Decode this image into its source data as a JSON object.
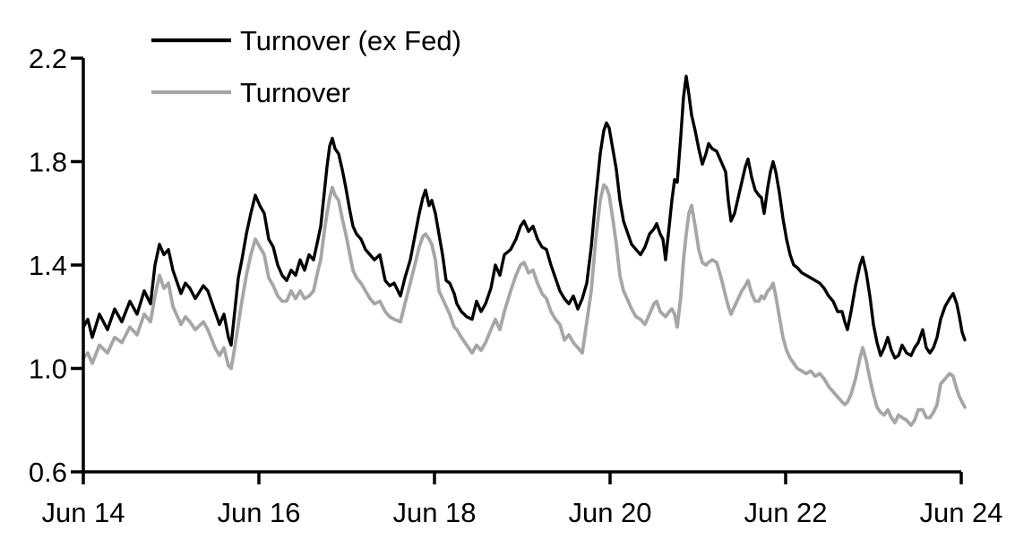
{
  "page": {
    "background": "#ffffff"
  },
  "chart_data": {
    "type": "line",
    "title": "",
    "grid": false,
    "x_axis": {
      "range": [
        0,
        10
      ],
      "tick_positions": [
        0,
        2,
        4,
        6,
        8,
        10
      ],
      "tick_labels": [
        "Jun 14",
        "Jun 16",
        "Jun 18",
        "Jun 20",
        "Jun 22",
        "Jun 24"
      ]
    },
    "y_axis": {
      "range": [
        0.6,
        2.2
      ],
      "tick_values": [
        0.6,
        1.0,
        1.4,
        1.8,
        2.2
      ],
      "tick_labels": [
        "0.6",
        "1.0",
        "1.4",
        "1.8",
        "2.2"
      ]
    },
    "legend": {
      "position": "top-left",
      "entries": [
        {
          "label": "Turnover (ex Fed)",
          "color": "#000000"
        },
        {
          "label": "Turnover",
          "color": "#a6a6a6"
        }
      ]
    },
    "x_unit": "years since Jun 2014",
    "x": [
      0,
      0.051,
      0.102,
      0.184,
      0.276,
      0.357,
      0.439,
      0.531,
      0.612,
      0.694,
      0.765,
      0.816,
      0.867,
      0.918,
      0.969,
      1.02,
      1.112,
      1.163,
      1.214,
      1.276,
      1.367,
      1.418,
      1.5,
      1.551,
      1.602,
      1.653,
      1.684,
      1.724,
      1.765,
      1.806,
      1.857,
      1.908,
      1.959,
      2.01,
      2.061,
      2.112,
      2.163,
      2.214,
      2.265,
      2.316,
      2.367,
      2.418,
      2.469,
      2.52,
      2.571,
      2.622,
      2.673,
      2.704,
      2.745,
      2.776,
      2.806,
      2.837,
      2.867,
      2.908,
      2.949,
      2.99,
      3.031,
      3.071,
      3.112,
      3.163,
      3.214,
      3.265,
      3.316,
      3.378,
      3.439,
      3.49,
      3.541,
      3.612,
      3.663,
      3.724,
      3.776,
      3.827,
      3.867,
      3.898,
      3.939,
      3.969,
      4.01,
      4.051,
      4.092,
      4.133,
      4.173,
      4.224,
      4.255,
      4.306,
      4.367,
      4.429,
      4.48,
      4.531,
      4.582,
      4.643,
      4.694,
      4.745,
      4.796,
      4.867,
      4.929,
      4.98,
      5.02,
      5.071,
      5.122,
      5.173,
      5.224,
      5.276,
      5.327,
      5.378,
      5.429,
      5.48,
      5.531,
      5.582,
      5.633,
      5.684,
      5.735,
      5.786,
      5.837,
      5.888,
      5.929,
      5.959,
      5.99,
      6.031,
      6.071,
      6.112,
      6.153,
      6.194,
      6.245,
      6.296,
      6.347,
      6.398,
      6.449,
      6.5,
      6.531,
      6.571,
      6.602,
      6.633,
      6.673,
      6.704,
      6.735,
      6.765,
      6.806,
      6.837,
      6.867,
      6.898,
      6.929,
      6.969,
      7.01,
      7.051,
      7.092,
      7.122,
      7.163,
      7.214,
      7.265,
      7.316,
      7.347,
      7.378,
      7.418,
      7.459,
      7.5,
      7.541,
      7.571,
      7.612,
      7.653,
      7.694,
      7.724,
      7.755,
      7.796,
      7.827,
      7.857,
      7.888,
      7.929,
      7.969,
      8.01,
      8.051,
      8.092,
      8.133,
      8.184,
      8.235,
      8.286,
      8.337,
      8.388,
      8.439,
      8.49,
      8.541,
      8.592,
      8.643,
      8.673,
      8.704,
      8.745,
      8.796,
      8.847,
      8.878,
      8.918,
      8.959,
      9,
      9.041,
      9.082,
      9.122,
      9.163,
      9.204,
      9.245,
      9.286,
      9.327,
      9.378,
      9.429,
      9.469,
      9.51,
      9.561,
      9.602,
      9.643,
      9.684,
      9.724,
      9.765,
      9.816,
      9.867,
      9.908,
      9.949,
      9.98,
      10.01,
      10.041
    ],
    "series": [
      {
        "name": "Turnover (ex Fed)",
        "color": "#000000",
        "stroke_width": 3.4,
        "values": [
          1.16,
          1.19,
          1.12,
          1.21,
          1.15,
          1.23,
          1.18,
          1.26,
          1.21,
          1.3,
          1.25,
          1.4,
          1.48,
          1.44,
          1.46,
          1.38,
          1.29,
          1.33,
          1.31,
          1.27,
          1.32,
          1.3,
          1.22,
          1.17,
          1.21,
          1.12,
          1.09,
          1.22,
          1.35,
          1.42,
          1.52,
          1.6,
          1.67,
          1.63,
          1.6,
          1.5,
          1.47,
          1.4,
          1.36,
          1.34,
          1.38,
          1.36,
          1.42,
          1.38,
          1.44,
          1.42,
          1.5,
          1.55,
          1.68,
          1.78,
          1.86,
          1.89,
          1.85,
          1.83,
          1.77,
          1.7,
          1.62,
          1.55,
          1.52,
          1.5,
          1.46,
          1.44,
          1.42,
          1.44,
          1.34,
          1.32,
          1.33,
          1.28,
          1.35,
          1.42,
          1.51,
          1.6,
          1.66,
          1.69,
          1.63,
          1.65,
          1.6,
          1.52,
          1.44,
          1.34,
          1.33,
          1.29,
          1.25,
          1.22,
          1.2,
          1.19,
          1.26,
          1.22,
          1.25,
          1.31,
          1.4,
          1.36,
          1.44,
          1.46,
          1.5,
          1.55,
          1.57,
          1.53,
          1.55,
          1.5,
          1.47,
          1.46,
          1.4,
          1.35,
          1.3,
          1.27,
          1.25,
          1.28,
          1.23,
          1.27,
          1.33,
          1.47,
          1.66,
          1.83,
          1.92,
          1.95,
          1.93,
          1.85,
          1.77,
          1.65,
          1.57,
          1.53,
          1.48,
          1.46,
          1.44,
          1.47,
          1.52,
          1.54,
          1.56,
          1.52,
          1.5,
          1.42,
          1.55,
          1.65,
          1.73,
          1.72,
          1.9,
          2.05,
          2.13,
          2.06,
          1.98,
          1.92,
          1.85,
          1.79,
          1.83,
          1.87,
          1.85,
          1.84,
          1.8,
          1.76,
          1.65,
          1.57,
          1.6,
          1.66,
          1.72,
          1.78,
          1.81,
          1.74,
          1.69,
          1.67,
          1.66,
          1.6,
          1.7,
          1.76,
          1.8,
          1.76,
          1.68,
          1.58,
          1.5,
          1.44,
          1.4,
          1.39,
          1.37,
          1.36,
          1.35,
          1.34,
          1.33,
          1.31,
          1.28,
          1.26,
          1.22,
          1.22,
          1.18,
          1.15,
          1.22,
          1.32,
          1.4,
          1.43,
          1.37,
          1.28,
          1.17,
          1.1,
          1.05,
          1.08,
          1.12,
          1.07,
          1.04,
          1.05,
          1.09,
          1.06,
          1.05,
          1.08,
          1.1,
          1.15,
          1.08,
          1.06,
          1.08,
          1.12,
          1.19,
          1.24,
          1.27,
          1.29,
          1.25,
          1.2,
          1.14,
          1.11
        ]
      },
      {
        "name": "Turnover",
        "color": "#a6a6a6",
        "stroke_width": 3.8,
        "values": [
          1.04,
          1.06,
          1.02,
          1.09,
          1.06,
          1.12,
          1.1,
          1.16,
          1.13,
          1.21,
          1.18,
          1.28,
          1.36,
          1.31,
          1.33,
          1.24,
          1.17,
          1.2,
          1.18,
          1.15,
          1.18,
          1.15,
          1.08,
          1.05,
          1.08,
          1.01,
          1.0,
          1.08,
          1.17,
          1.26,
          1.36,
          1.44,
          1.5,
          1.47,
          1.44,
          1.35,
          1.32,
          1.28,
          1.26,
          1.26,
          1.3,
          1.27,
          1.3,
          1.27,
          1.28,
          1.3,
          1.38,
          1.42,
          1.53,
          1.6,
          1.66,
          1.7,
          1.67,
          1.65,
          1.58,
          1.52,
          1.45,
          1.38,
          1.35,
          1.33,
          1.3,
          1.27,
          1.25,
          1.26,
          1.22,
          1.2,
          1.19,
          1.18,
          1.25,
          1.33,
          1.4,
          1.47,
          1.51,
          1.52,
          1.5,
          1.48,
          1.42,
          1.3,
          1.27,
          1.24,
          1.21,
          1.16,
          1.15,
          1.12,
          1.09,
          1.06,
          1.09,
          1.07,
          1.1,
          1.15,
          1.19,
          1.15,
          1.22,
          1.3,
          1.36,
          1.4,
          1.41,
          1.37,
          1.38,
          1.33,
          1.29,
          1.27,
          1.22,
          1.19,
          1.17,
          1.11,
          1.13,
          1.1,
          1.08,
          1.06,
          1.18,
          1.3,
          1.5,
          1.65,
          1.71,
          1.7,
          1.67,
          1.58,
          1.48,
          1.36,
          1.3,
          1.27,
          1.23,
          1.2,
          1.19,
          1.17,
          1.21,
          1.25,
          1.26,
          1.22,
          1.21,
          1.2,
          1.22,
          1.23,
          1.21,
          1.16,
          1.28,
          1.42,
          1.52,
          1.6,
          1.63,
          1.55,
          1.46,
          1.41,
          1.4,
          1.41,
          1.42,
          1.41,
          1.35,
          1.28,
          1.24,
          1.21,
          1.24,
          1.27,
          1.3,
          1.32,
          1.34,
          1.29,
          1.26,
          1.26,
          1.28,
          1.27,
          1.3,
          1.31,
          1.33,
          1.28,
          1.2,
          1.12,
          1.07,
          1.04,
          1.02,
          1.0,
          0.99,
          0.98,
          0.99,
          0.97,
          0.98,
          0.96,
          0.93,
          0.91,
          0.89,
          0.87,
          0.86,
          0.87,
          0.9,
          0.96,
          1.04,
          1.08,
          1.03,
          0.96,
          0.9,
          0.85,
          0.83,
          0.82,
          0.84,
          0.81,
          0.79,
          0.82,
          0.81,
          0.8,
          0.78,
          0.8,
          0.84,
          0.84,
          0.81,
          0.81,
          0.83,
          0.86,
          0.94,
          0.96,
          0.98,
          0.97,
          0.92,
          0.89,
          0.87,
          0.85
        ]
      }
    ]
  }
}
